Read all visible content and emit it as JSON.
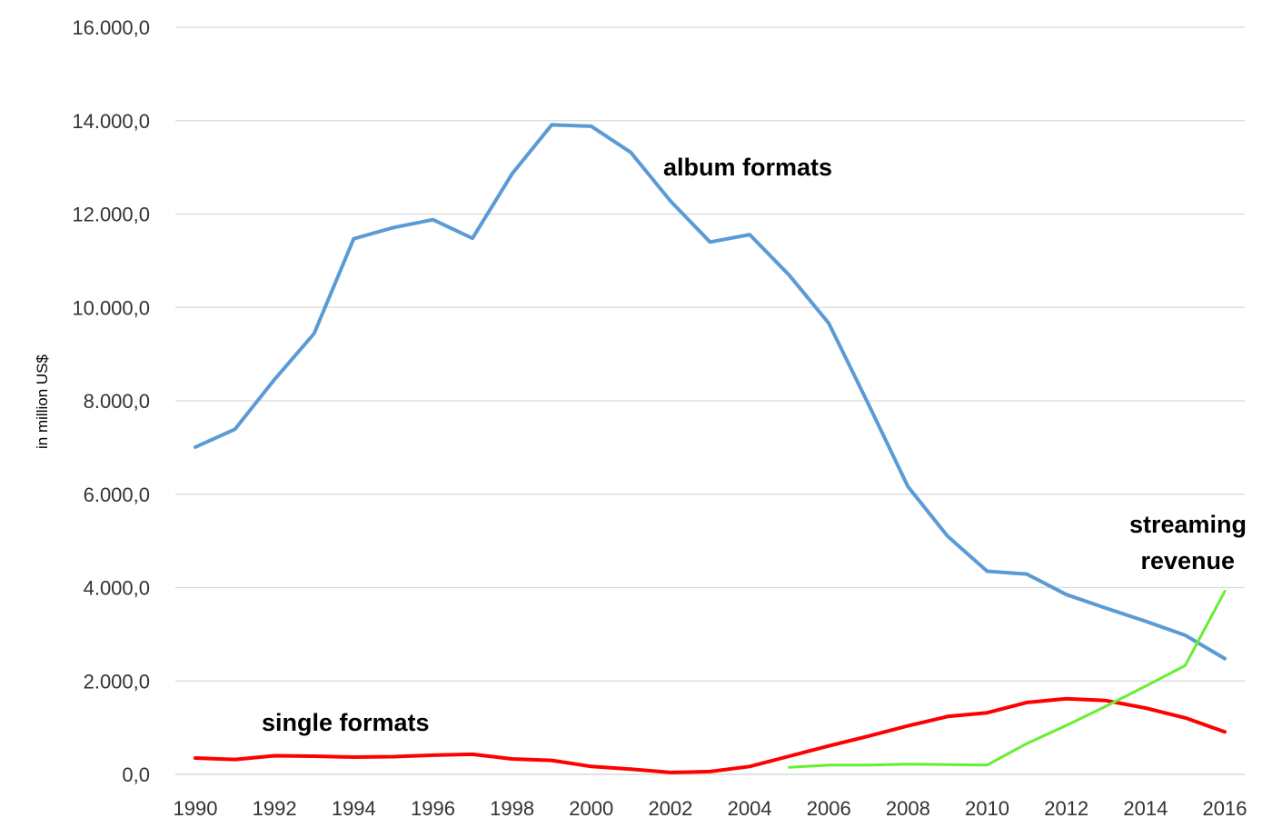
{
  "chart_data": {
    "type": "line",
    "title": "",
    "xlabel": "",
    "ylabel": "in million US$",
    "x": [
      1990,
      1991,
      1992,
      1993,
      1994,
      1995,
      1996,
      1997,
      1998,
      1999,
      2000,
      2001,
      2002,
      2003,
      2004,
      2005,
      2006,
      2007,
      2008,
      2009,
      2010,
      2011,
      2012,
      2013,
      2014,
      2015,
      2016
    ],
    "x_ticks": [
      "1990",
      "1992",
      "1994",
      "1996",
      "1998",
      "2000",
      "2002",
      "2004",
      "2006",
      "2008",
      "2010",
      "2012",
      "2014",
      "2016"
    ],
    "y_ticks": [
      "0,0",
      "2.000,0",
      "4.000,0",
      "6.000,0",
      "8.000,0",
      "10.000,0",
      "12.000,0",
      "14.000,0",
      "16.000,0"
    ],
    "ylim": [
      0,
      16000
    ],
    "grid": true,
    "legend": "none",
    "series": [
      {
        "name": "album formats",
        "color": "#5B9BD5",
        "values": [
          7010,
          7390,
          8460,
          9440,
          11470,
          11710,
          11880,
          11480,
          12860,
          13910,
          13880,
          13320,
          12280,
          11400,
          11560,
          10690,
          9660,
          7930,
          6160,
          5100,
          4350,
          4290,
          3850,
          3560,
          3280,
          2980,
          2480
        ]
      },
      {
        "name": "single formats",
        "color": "#FF0000",
        "values": [
          350,
          320,
          400,
          390,
          370,
          380,
          410,
          430,
          330,
          300,
          170,
          110,
          40,
          60,
          170,
          390,
          610,
          820,
          1040,
          1240,
          1320,
          1540,
          1620,
          1580,
          1420,
          1210,
          910
        ]
      },
      {
        "name": "streaming revenue",
        "color": "#66EE33",
        "values": [
          null,
          null,
          null,
          null,
          null,
          null,
          null,
          null,
          null,
          null,
          null,
          null,
          null,
          null,
          null,
          150,
          200,
          200,
          220,
          210,
          200,
          660,
          1050,
          1460,
          1890,
          2330,
          3920
        ]
      }
    ],
    "annotations": [
      {
        "text": "album formats"
      },
      {
        "text": "single formats"
      },
      {
        "text": "streaming",
        "text2": "revenue"
      }
    ]
  }
}
